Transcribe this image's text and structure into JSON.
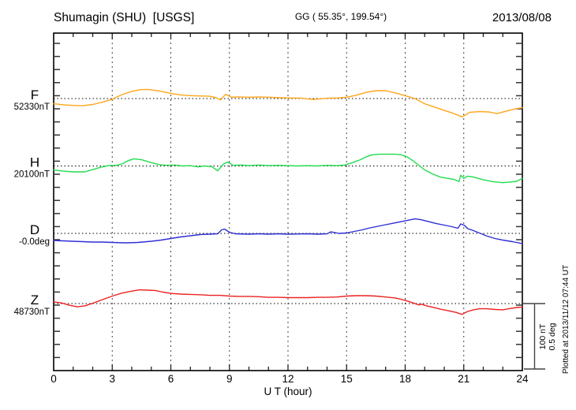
{
  "header": {
    "title": "Shumagin (SHU)  [USGS]",
    "coords": "GG ( 55.35°, 199.54°)",
    "date": "2013/08/08"
  },
  "axis": {
    "xlabel": "U T (hour)",
    "xmin": 0,
    "xmax": 24,
    "xticks": [
      0,
      3,
      6,
      9,
      12,
      15,
      18,
      21,
      24
    ],
    "minor_tick_every_hours": 1,
    "grid_every_hours": 3
  },
  "scalebar": {
    "line1": "100 nT",
    "line2": "0.5 deg",
    "nT_per_bar": 100,
    "deg_per_bar": 0.5
  },
  "footer": {
    "plotted_at": "Plotted at 2013/11/12 07:44 UT"
  },
  "chart_data": {
    "type": "line",
    "title": "Shumagin (SHU) [USGS] magnetogram",
    "xlabel": "U T (hour)",
    "x_range_hours": [
      0,
      24
    ],
    "grid": "dashed vertical every 3 h; dotted baseline per trace",
    "legend_position": "left margin channel labels",
    "series": [
      {
        "name": "F",
        "unit": "nT",
        "reference": 52330,
        "reference_label": "52330nT",
        "color": "#FFA518",
        "points_hour_offset": [
          [
            0,
            -8
          ],
          [
            0.5,
            -9.5
          ],
          [
            1,
            -10.5
          ],
          [
            1.5,
            -11
          ],
          [
            2,
            -9
          ],
          [
            2.5,
            -5.5
          ],
          [
            3,
            -1
          ],
          [
            3.5,
            6
          ],
          [
            4,
            11
          ],
          [
            4.4,
            13.5
          ],
          [
            4.8,
            14
          ],
          [
            5.2,
            12.5
          ],
          [
            5.6,
            10.5
          ],
          [
            6,
            8
          ],
          [
            6.5,
            5.5
          ],
          [
            7,
            4.5
          ],
          [
            7.5,
            4
          ],
          [
            8,
            3.5
          ],
          [
            8.3,
            1.5
          ],
          [
            8.55,
            -2
          ],
          [
            8.8,
            6.5
          ],
          [
            9.1,
            2
          ],
          [
            9.5,
            2.5
          ],
          [
            10,
            2
          ],
          [
            10.5,
            2.5
          ],
          [
            11,
            2
          ],
          [
            11.5,
            1.5
          ],
          [
            12,
            1
          ],
          [
            12.7,
            0.5
          ],
          [
            13.3,
            -1.5
          ],
          [
            14,
            0.5
          ],
          [
            14.6,
            1
          ],
          [
            15,
            2
          ],
          [
            15.5,
            5
          ],
          [
            16,
            9.5
          ],
          [
            16.5,
            12
          ],
          [
            17,
            12
          ],
          [
            17.5,
            8.5
          ],
          [
            18,
            4.5
          ],
          [
            18.5,
            0
          ],
          [
            19,
            -8
          ],
          [
            19.5,
            -13
          ],
          [
            20,
            -18
          ],
          [
            20.5,
            -23
          ],
          [
            20.9,
            -28
          ],
          [
            21.1,
            -25
          ],
          [
            21.3,
            -21
          ],
          [
            21.8,
            -20
          ],
          [
            22.3,
            -20.5
          ],
          [
            22.7,
            -23
          ],
          [
            23.2,
            -19
          ],
          [
            23.6,
            -16
          ],
          [
            24,
            -14
          ]
        ]
      },
      {
        "name": "H",
        "unit": "nT",
        "reference": 20100,
        "reference_label": "20100nT",
        "color": "#22DC4E",
        "points_hour_offset": [
          [
            0,
            -6
          ],
          [
            0.5,
            -8
          ],
          [
            1,
            -9
          ],
          [
            1.6,
            -9
          ],
          [
            2,
            -5.5
          ],
          [
            2.4,
            -2
          ],
          [
            2.8,
            0.5
          ],
          [
            3.2,
            1
          ],
          [
            3.5,
            3
          ],
          [
            3.8,
            8
          ],
          [
            4.1,
            11
          ],
          [
            4.5,
            9.5
          ],
          [
            5,
            5
          ],
          [
            5.4,
            2
          ],
          [
            5.8,
            1
          ],
          [
            6.2,
            1.5
          ],
          [
            6.6,
            0
          ],
          [
            7,
            0.5
          ],
          [
            7.4,
            -1.5
          ],
          [
            7.7,
            0
          ],
          [
            8.1,
            -1
          ],
          [
            8.4,
            -7.5
          ],
          [
            8.7,
            3
          ],
          [
            8.9,
            6
          ],
          [
            9.2,
            1
          ],
          [
            9.6,
            1.5
          ],
          [
            10,
            0.5
          ],
          [
            10.5,
            1.5
          ],
          [
            11,
            0.5
          ],
          [
            11.5,
            1
          ],
          [
            12,
            0.5
          ],
          [
            12.5,
            0
          ],
          [
            13,
            0.5
          ],
          [
            13.5,
            0
          ],
          [
            14,
            1
          ],
          [
            14.5,
            0.5
          ],
          [
            14.9,
            1.5
          ],
          [
            15.3,
            5
          ],
          [
            15.7,
            9.5
          ],
          [
            16,
            14
          ],
          [
            16.3,
            17
          ],
          [
            16.7,
            18
          ],
          [
            17.1,
            18
          ],
          [
            17.5,
            18
          ],
          [
            17.8,
            17
          ],
          [
            18.1,
            14
          ],
          [
            18.4,
            8
          ],
          [
            18.7,
            1
          ],
          [
            19,
            -6
          ],
          [
            19.4,
            -12
          ],
          [
            19.8,
            -17
          ],
          [
            20.2,
            -19
          ],
          [
            20.5,
            -20.5
          ],
          [
            20.75,
            -24
          ],
          [
            20.85,
            -14
          ],
          [
            21,
            -19
          ],
          [
            21.2,
            -15.5
          ],
          [
            21.5,
            -17
          ],
          [
            22,
            -21
          ],
          [
            22.5,
            -24
          ],
          [
            23,
            -25.5
          ],
          [
            23.4,
            -24.5
          ],
          [
            23.7,
            -23.5
          ],
          [
            24,
            -19
          ]
        ]
      },
      {
        "name": "D",
        "unit": "deg",
        "reference": -0.0,
        "reference_label": "-0.0deg",
        "color": "#2E2ED4",
        "points_hour_offset": [
          [
            0,
            -0.054
          ],
          [
            0.5,
            -0.057
          ],
          [
            1,
            -0.06
          ],
          [
            1.5,
            -0.063
          ],
          [
            2,
            -0.066
          ],
          [
            2.5,
            -0.066
          ],
          [
            3,
            -0.069
          ],
          [
            3.7,
            -0.072
          ],
          [
            4.3,
            -0.069
          ],
          [
            5,
            -0.06
          ],
          [
            5.5,
            -0.051
          ],
          [
            6,
            -0.039
          ],
          [
            6.5,
            -0.027
          ],
          [
            7,
            -0.018
          ],
          [
            7.5,
            -0.009
          ],
          [
            8,
            -0.006
          ],
          [
            8.4,
            -0.003
          ],
          [
            8.6,
            0.027
          ],
          [
            8.75,
            0.033
          ],
          [
            9,
            0.009
          ],
          [
            9.3,
            -0.003
          ],
          [
            10,
            -0.006
          ],
          [
            10.5,
            -0.003
          ],
          [
            11,
            -0.006
          ],
          [
            11.5,
            -0.003
          ],
          [
            12,
            -0.006
          ],
          [
            13,
            -0.003
          ],
          [
            13.5,
            -0.006
          ],
          [
            14,
            -0.003
          ],
          [
            14.2,
            0.012
          ],
          [
            14.6,
            0
          ],
          [
            15,
            0.003
          ],
          [
            15.4,
            0.015
          ],
          [
            15.8,
            0.027
          ],
          [
            16.2,
            0.042
          ],
          [
            16.6,
            0.054
          ],
          [
            17,
            0.066
          ],
          [
            17.4,
            0.078
          ],
          [
            17.8,
            0.09
          ],
          [
            18.2,
            0.102
          ],
          [
            18.5,
            0.111
          ],
          [
            18.8,
            0.105
          ],
          [
            19.2,
            0.09
          ],
          [
            19.6,
            0.075
          ],
          [
            20,
            0.063
          ],
          [
            20.4,
            0.051
          ],
          [
            20.7,
            0.039
          ],
          [
            20.85,
            0.072
          ],
          [
            21.05,
            0.06
          ],
          [
            21.2,
            0.036
          ],
          [
            21.5,
            0.021
          ],
          [
            21.8,
            0.003
          ],
          [
            22.2,
            -0.021
          ],
          [
            22.6,
            -0.039
          ],
          [
            23,
            -0.051
          ],
          [
            23.5,
            -0.063
          ],
          [
            24,
            -0.078
          ]
        ]
      },
      {
        "name": "Z",
        "unit": "nT",
        "reference": 48730,
        "reference_label": "48730nT",
        "color": "#EC2222",
        "points_hour_offset": [
          [
            0,
            2.5
          ],
          [
            0.4,
            1
          ],
          [
            0.8,
            -2.5
          ],
          [
            1.2,
            -5
          ],
          [
            1.6,
            -3.5
          ],
          [
            2,
            0.5
          ],
          [
            2.5,
            6
          ],
          [
            3,
            11.5
          ],
          [
            3.5,
            16
          ],
          [
            4,
            19
          ],
          [
            4.4,
            21
          ],
          [
            4.8,
            20.5
          ],
          [
            5.2,
            20
          ],
          [
            5.6,
            17.5
          ],
          [
            6,
            15.5
          ],
          [
            6.5,
            14.5
          ],
          [
            7,
            14
          ],
          [
            7.5,
            13.5
          ],
          [
            8,
            12.5
          ],
          [
            8.5,
            12.5
          ],
          [
            9,
            11.5
          ],
          [
            9.5,
            11
          ],
          [
            10,
            11
          ],
          [
            10.5,
            10.5
          ],
          [
            11,
            9.5
          ],
          [
            11.5,
            9.5
          ],
          [
            12,
            9
          ],
          [
            12.5,
            9
          ],
          [
            13,
            9
          ],
          [
            13.5,
            9.5
          ],
          [
            14,
            9.5
          ],
          [
            14.5,
            10
          ],
          [
            15,
            11.5
          ],
          [
            15.5,
            12
          ],
          [
            16,
            12
          ],
          [
            16.5,
            11.5
          ],
          [
            17,
            10
          ],
          [
            17.5,
            8.5
          ],
          [
            18,
            5
          ],
          [
            18.3,
            2
          ],
          [
            18.55,
            -0.5
          ],
          [
            18.7,
            -2
          ],
          [
            18.85,
            -1
          ],
          [
            19.1,
            -3.5
          ],
          [
            19.4,
            -5.5
          ],
          [
            19.8,
            -8.5
          ],
          [
            20.2,
            -11
          ],
          [
            20.6,
            -13.5
          ],
          [
            20.9,
            -16.5
          ],
          [
            21.2,
            -12
          ],
          [
            21.5,
            -9.5
          ],
          [
            21.8,
            -8
          ],
          [
            22.2,
            -8
          ],
          [
            22.6,
            -9
          ],
          [
            23,
            -9.5
          ],
          [
            23.3,
            -8
          ],
          [
            23.7,
            -6
          ],
          [
            24,
            -5.5
          ]
        ]
      }
    ]
  }
}
